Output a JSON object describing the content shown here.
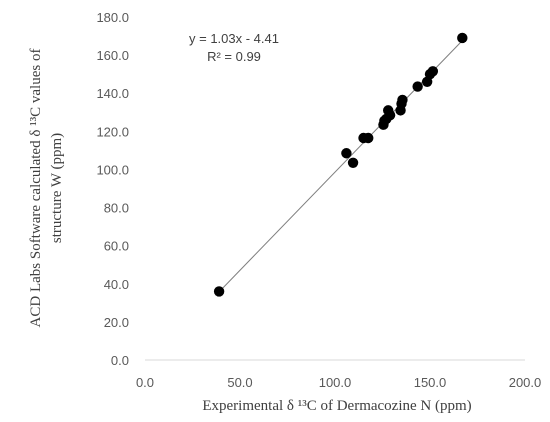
{
  "chart_data": {
    "type": "scatter",
    "title": "",
    "xlabel": "Experimental δ ¹³C of Dermacozine N (ppm)",
    "ylabel_lines": [
      "ACD Labs Software calculated δ ¹³C values of",
      "structure W (ppm)"
    ],
    "xlim": [
      0,
      200
    ],
    "ylim": [
      0,
      180
    ],
    "xticks": [
      "0.0",
      "50.0",
      "100.0",
      "150.0",
      "200.0"
    ],
    "yticks": [
      "0.0",
      "20.0",
      "40.0",
      "60.0",
      "80.0",
      "100.0",
      "120.0",
      "140.0",
      "160.0",
      "180.0"
    ],
    "grid": false,
    "marker_color": "#000000",
    "trendline_color": "#7f7f7f",
    "trendline": {
      "slope": 1.03,
      "intercept": -4.41
    },
    "annotation": {
      "equation": "y = 1.03x - 4.41",
      "r2": "R² = 0.99"
    },
    "points": [
      {
        "x": 39.0,
        "y": 36.0
      },
      {
        "x": 106.0,
        "y": 108.5
      },
      {
        "x": 109.5,
        "y": 103.5
      },
      {
        "x": 115.0,
        "y": 116.5
      },
      {
        "x": 117.5,
        "y": 116.5
      },
      {
        "x": 125.5,
        "y": 123.5
      },
      {
        "x": 126.0,
        "y": 125.5
      },
      {
        "x": 127.0,
        "y": 126.5
      },
      {
        "x": 128.0,
        "y": 131.0
      },
      {
        "x": 129.0,
        "y": 128.5
      },
      {
        "x": 134.5,
        "y": 131.0
      },
      {
        "x": 135.0,
        "y": 134.5
      },
      {
        "x": 135.5,
        "y": 136.5
      },
      {
        "x": 143.5,
        "y": 143.5
      },
      {
        "x": 148.5,
        "y": 146.0
      },
      {
        "x": 150.0,
        "y": 150.0
      },
      {
        "x": 151.5,
        "y": 151.5
      },
      {
        "x": 167.0,
        "y": 169.0
      }
    ]
  }
}
